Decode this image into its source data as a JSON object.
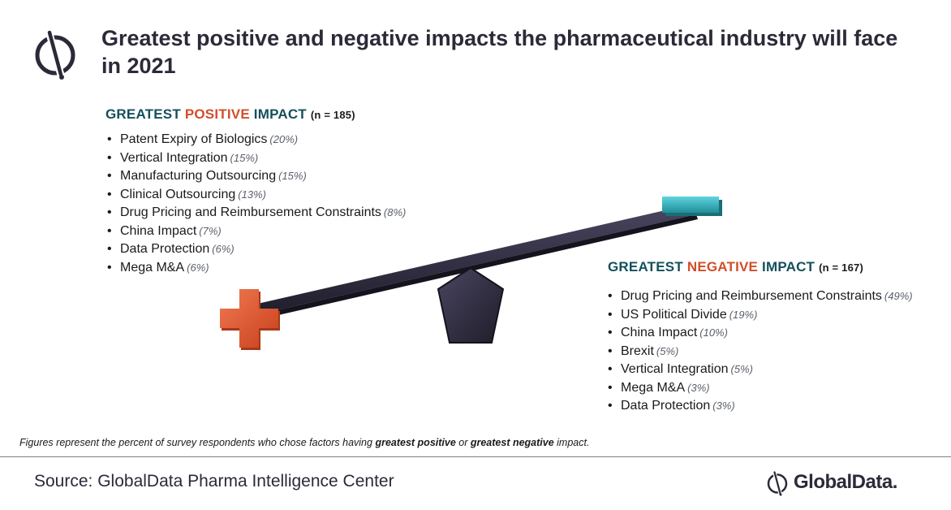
{
  "title": "Greatest positive and negative impacts the pharmaceutical industry will face in 2021",
  "positive": {
    "heading_prefix": "GREATEST",
    "heading_keyword": "POSITIVE",
    "heading_suffix": "IMPACT",
    "n_label": "(n = 185)",
    "items": [
      {
        "label": "Patent Expiry of Biologics",
        "pct": "(20%)"
      },
      {
        "label": "Vertical Integration",
        "pct": "(15%)"
      },
      {
        "label": "Manufacturing Outsourcing",
        "pct": "(15%)"
      },
      {
        "label": "Clinical Outsourcing",
        "pct": "(13%)"
      },
      {
        "label": "Drug Pricing and Reimbursement Constraints",
        "pct": "(8%)"
      },
      {
        "label": "China Impact",
        "pct": "(7%)"
      },
      {
        "label": "Data Protection",
        "pct": "(6%)"
      },
      {
        "label": "Mega M&A",
        "pct": "(6%)"
      }
    ]
  },
  "negative": {
    "heading_prefix": "GREATEST",
    "heading_keyword": "NEGATIVE",
    "heading_suffix": "IMPACT",
    "n_label": "(n = 167)",
    "items": [
      {
        "label": "Drug Pricing and Reimbursement Constraints",
        "pct": "(49%)"
      },
      {
        "label": "US Political Divide",
        "pct": "(19%)"
      },
      {
        "label": "China Impact",
        "pct": "(10%)"
      },
      {
        "label": "Brexit",
        "pct": "(5%)"
      },
      {
        "label": "Vertical Integration",
        "pct": "(5%)"
      },
      {
        "label": "Mega M&A",
        "pct": "(3%)"
      },
      {
        "label": "Data Protection",
        "pct": "(3%)"
      }
    ]
  },
  "footnote": {
    "part1": "Figures represent the percent of survey respondents who chose factors having ",
    "bold1": "greatest positive",
    "part2": " or ",
    "bold2": "greatest negative",
    "part3": " impact."
  },
  "source": "Source: GlobalData Pharma Intelligence Center",
  "brand": {
    "name": "GlobalData."
  },
  "colors": {
    "title": "#2b2a38",
    "heading_teal": "#13505b",
    "accent_orange": "#d24e2b",
    "minus_teal": "#3ab8c4",
    "beam": "#2d2a3a"
  },
  "icons": {
    "logo": "globaldata-logo-icon",
    "plus": "plus-icon",
    "minus": "minus-icon",
    "fulcrum": "pentagon-fulcrum-icon"
  }
}
